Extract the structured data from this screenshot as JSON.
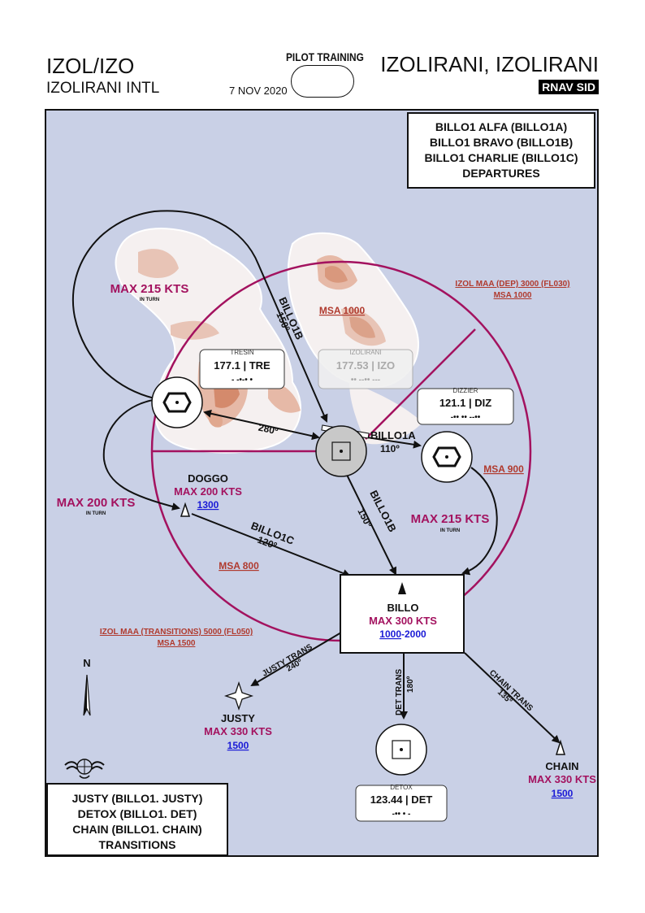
{
  "header": {
    "airport_code": "IZOL/IZO",
    "airport_name": "IZOLIRANI INTL",
    "date": "7 NOV 2020",
    "pilot_training": "PILOT TRAINING",
    "city": "IZOLIRANI, IZOLIRANI",
    "chart_type": "RNAV SID"
  },
  "title_box": [
    "BILLO1 ALFA (BILLO1A)",
    "BILLO1 BRAVO (BILLO1B)",
    "BILLO1 CHARLIE (BILLO1C)",
    "DEPARTURES"
  ],
  "transitions_box": [
    "JUSTY (BILLO1. JUSTY)",
    "DETOX (BILLO1. DET)",
    "CHAIN (BILLO1. CHAIN)",
    "TRANSITIONS"
  ],
  "navaids": {
    "tresin": {
      "name": "TRESIN",
      "freq_id": "177.1 | TRE",
      "morse": "- -•-• •"
    },
    "izolirani": {
      "name": "IZOLIRANI",
      "freq_id": "177.53 | IZO",
      "morse": "•• --•• ---"
    },
    "dizzier": {
      "name": "DIZZIER",
      "freq_id": "121.1 | DIZ",
      "morse": "-•• •• --••"
    },
    "detox": {
      "name": "DETOX",
      "freq_id": "123.44 | DET",
      "morse": "-•• • -"
    }
  },
  "fixes": {
    "doggo": {
      "name": "DOGGO",
      "speed": "MAX 200 KTS",
      "alt": "1300"
    },
    "billo": {
      "name": "BILLO",
      "speed": "MAX 300 KTS",
      "alt_low": "1000",
      "alt_sep": "-",
      "alt_high": "2000"
    },
    "justy": {
      "name": "JUSTY",
      "speed": "MAX 330 KTS",
      "alt": "1500"
    },
    "chain": {
      "name": "CHAIN",
      "speed": "MAX 330 KTS",
      "alt": "1500"
    }
  },
  "routes": {
    "billo1a": "BILLO1A",
    "billo1a_course": "110º",
    "billo1b_north": "BILLO1B",
    "billo1b_north_course": "150º",
    "billo1b_south": "BILLO1B",
    "billo1b_south_course": "150º",
    "billo1c": "BILLO1C",
    "billo1c_course": "120º",
    "tre_course": "280º",
    "justy_trans": "JUSTY TRANS",
    "justy_course": "240º",
    "det_trans": "DET TRANS",
    "det_course": "180º",
    "chain_trans": "CHAIN TRANS",
    "chain_course": "135º"
  },
  "speed_limits": {
    "nw": "MAX 215 KTS",
    "nw_sub": "IN TURN",
    "w": "MAX 200 KTS",
    "w_sub": "IN TURN",
    "e": "MAX 215 KTS",
    "e_sub": "IN TURN"
  },
  "msa": {
    "maa_dep": "IZOL MAA (DEP) 3000 (FL030)",
    "maa_dep_msa": "MSA 1000",
    "north": "MSA 1000",
    "east": "MSA 900",
    "southwest": "MSA 800",
    "maa_trans": "IZOL MAA (TRANSITIONS) 5000 (FL050)",
    "maa_trans_msa": "MSA 1500"
  },
  "north_label": "N",
  "colors": {
    "map_bg": "#c9d0e6",
    "msa_circle": "#a3125f",
    "msa_text": "#b03a2e",
    "speed_text": "#a3125f",
    "alt_link": "#1a1ad6",
    "terrain_light": "#f3eded",
    "terrain_mid": "#e8c0b3",
    "terrain_dark": "#d27758"
  }
}
